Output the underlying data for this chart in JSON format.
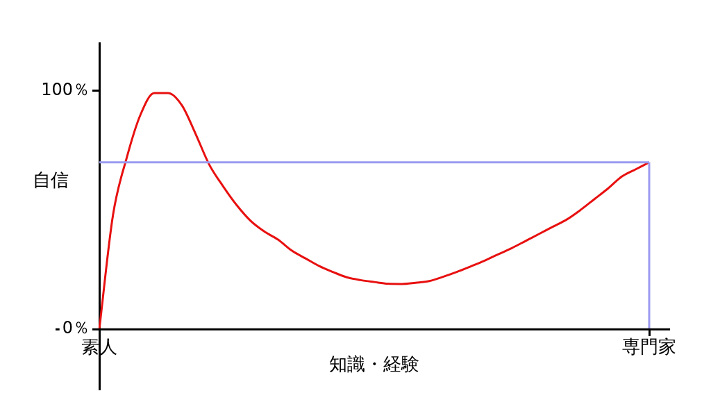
{
  "chart_data": {
    "type": "line",
    "xlabel": "知識・経験",
    "ylabel": "自信",
    "ylim": [
      -25,
      120
    ],
    "categories": [
      "素人",
      null,
      null,
      null,
      null,
      null,
      null,
      null,
      null,
      null,
      null,
      null,
      null,
      null,
      null,
      null,
      null,
      null,
      null,
      null,
      null,
      null,
      null,
      null,
      null,
      null,
      null,
      null,
      null,
      null,
      null,
      null,
      null,
      null,
      null,
      null,
      null,
      null,
      null,
      null,
      "専門家"
    ],
    "yticks": [
      {
        "value": 0,
        "label": "0％"
      },
      {
        "value": 100,
        "label": "100％"
      }
    ],
    "grid": false,
    "legend": false,
    "marker": "none",
    "line_style": "solid",
    "series": [
      {
        "color": "#e81010",
        "values": [
          0,
          48,
          72,
          90,
          99,
          99,
          94,
          82,
          69,
          60,
          52,
          45.5,
          41,
          37.6,
          33,
          29.7,
          26.5,
          24,
          21.8,
          20.6,
          19.8,
          19.1,
          19,
          19.5,
          20.2,
          22,
          24,
          26.3,
          28.7,
          31.4,
          34,
          37,
          40,
          43,
          46,
          50,
          54.5,
          59,
          64,
          67,
          70
        ]
      }
    ],
    "ref_lines": [
      {
        "axis": "y",
        "value": 70,
        "color": "#9a9af0"
      },
      {
        "axis": "x",
        "value": "専門家",
        "color": "#9a9af0"
      }
    ]
  }
}
